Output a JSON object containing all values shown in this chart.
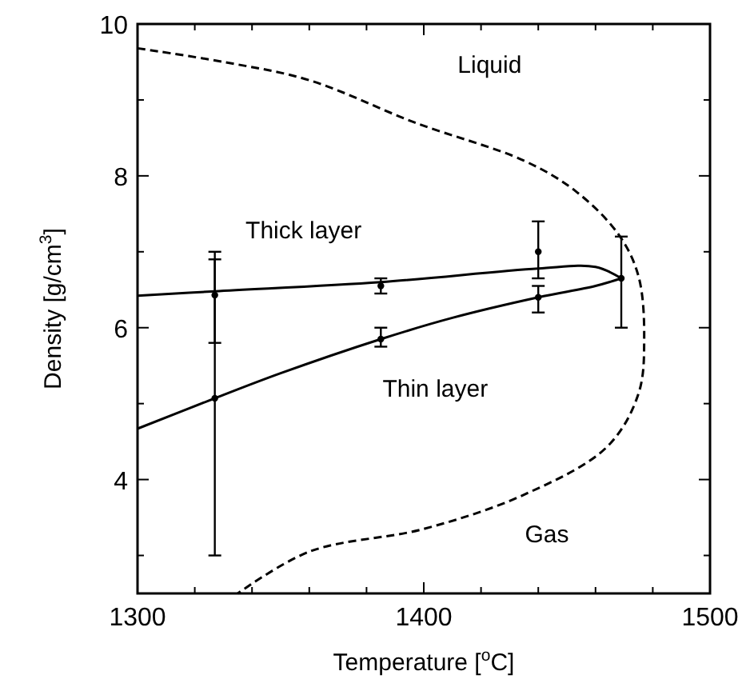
{
  "chart_data": {
    "type": "scatter",
    "xlabel": "Temperature [$^{o}$C]",
    "ylabel": "Density [g/cm$^{3}$]",
    "xlim": [
      1300,
      1500
    ],
    "xticks": [
      1300,
      {
        "value": 1320,
        "label": null
      },
      {
        "value": 1340,
        "label": null
      },
      {
        "value": 1360,
        "label": null
      },
      {
        "value": 1380,
        "label": null
      },
      1400,
      {
        "value": 1420,
        "label": null
      },
      {
        "value": 1440,
        "label": null
      },
      {
        "value": 1460,
        "label": null
      },
      {
        "value": 1480,
        "label": null
      },
      1500
    ],
    "ylim": [
      2.5,
      10
    ],
    "yticks": [
      {
        "value": 3,
        "label": null
      },
      4,
      {
        "value": 5,
        "label": null
      },
      6,
      {
        "value": 7,
        "label": null
      },
      8,
      {
        "value": 9,
        "label": null
      },
      10
    ],
    "grid": false,
    "series": [
      {
        "name": "Thick layer",
        "type": "line",
        "color": "#000000",
        "marker": "none",
        "line_style": "solid",
        "x": [
          1300,
          1327,
          1385,
          1440,
          1460,
          1469
        ],
        "values": [
          6.42,
          6.48,
          6.6,
          6.78,
          6.8,
          6.65
        ]
      },
      {
        "name": "Thin layer",
        "type": "line",
        "color": "#000000",
        "marker": "none",
        "line_style": "solid",
        "x": [
          1300,
          1327,
          1350,
          1385,
          1410,
          1440,
          1460,
          1469
        ],
        "values": [
          4.67,
          5.07,
          5.4,
          5.85,
          6.13,
          6.4,
          6.55,
          6.65
        ]
      },
      {
        "color": "#000000",
        "marker": "circle",
        "x": [
          1327,
          1385,
          1440,
          1469
        ],
        "values": [
          6.43,
          6.55,
          7.0,
          6.65
        ],
        "errors": [
          [
            5.8,
            6.9
          ],
          [
            6.45,
            6.65
          ],
          [
            6.65,
            7.4
          ],
          [
            6.0,
            7.2
          ]
        ]
      },
      {
        "color": "#000000",
        "marker": "circle",
        "x": [
          1327,
          1385,
          1440
        ],
        "values": [
          5.07,
          5.85,
          6.4
        ],
        "errors": [
          [
            3.0,
            7.0
          ],
          [
            5.75,
            6.0
          ],
          [
            6.2,
            6.55
          ]
        ]
      },
      {
        "type": "line",
        "color": "#000000",
        "marker": "none",
        "line_style": "dashed",
        "x": [
          1300,
          1330,
          1360,
          1397,
          1435,
          1453,
          1468,
          1475,
          1477,
          1475,
          1464,
          1435,
          1400,
          1360,
          1335
        ],
        "values": [
          9.68,
          9.5,
          9.26,
          8.7,
          8.2,
          7.8,
          7.23,
          6.68,
          5.84,
          5.13,
          4.43,
          3.8,
          3.35,
          3.05,
          2.5
        ]
      }
    ],
    "annotations": [
      "Liquid",
      "Gas"
    ]
  }
}
